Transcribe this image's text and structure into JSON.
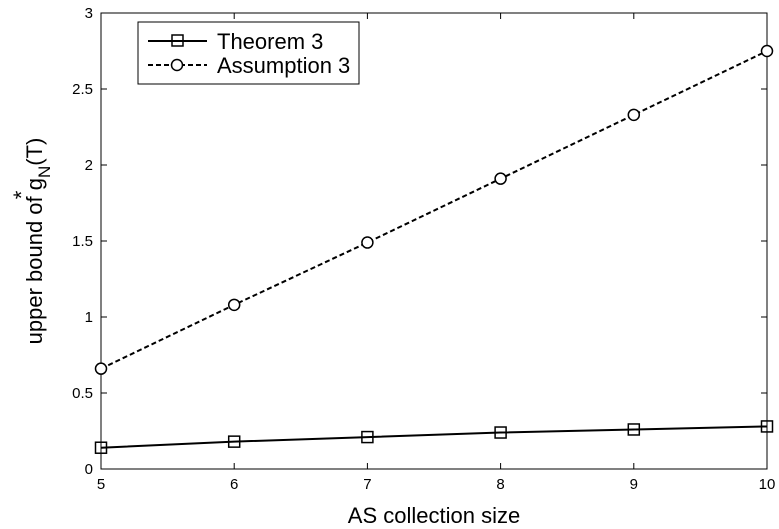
{
  "chart_data": {
    "type": "line",
    "title": "",
    "xlabel": "AS collection size",
    "ylabel": "upper bound of g",
    "ylabel_sup": "*",
    "ylabel_sub": "N",
    "ylabel_tail": "(T)",
    "xlim": [
      5,
      10
    ],
    "ylim": [
      0,
      3
    ],
    "x": [
      5,
      6,
      7,
      8,
      9,
      10
    ],
    "x_ticks": [
      "5",
      "6",
      "7",
      "8",
      "9",
      "10"
    ],
    "y_ticks": [
      "0",
      "0.5",
      "1",
      "1.5",
      "2",
      "2.5",
      "3"
    ],
    "y_tick_values": [
      0,
      0.5,
      1,
      1.5,
      2,
      2.5,
      3
    ],
    "grid": false,
    "legend_position": "top-left",
    "series": [
      {
        "name": "Theorem 3",
        "values": [
          0.14,
          0.18,
          0.21,
          0.24,
          0.26,
          0.28
        ],
        "line_style": "solid",
        "marker": "square",
        "color": "#000000"
      },
      {
        "name": "Assumption 3",
        "values": [
          0.66,
          1.08,
          1.49,
          1.91,
          2.33,
          2.75
        ],
        "line_style": "dashed",
        "marker": "circle",
        "color": "#000000"
      }
    ]
  }
}
